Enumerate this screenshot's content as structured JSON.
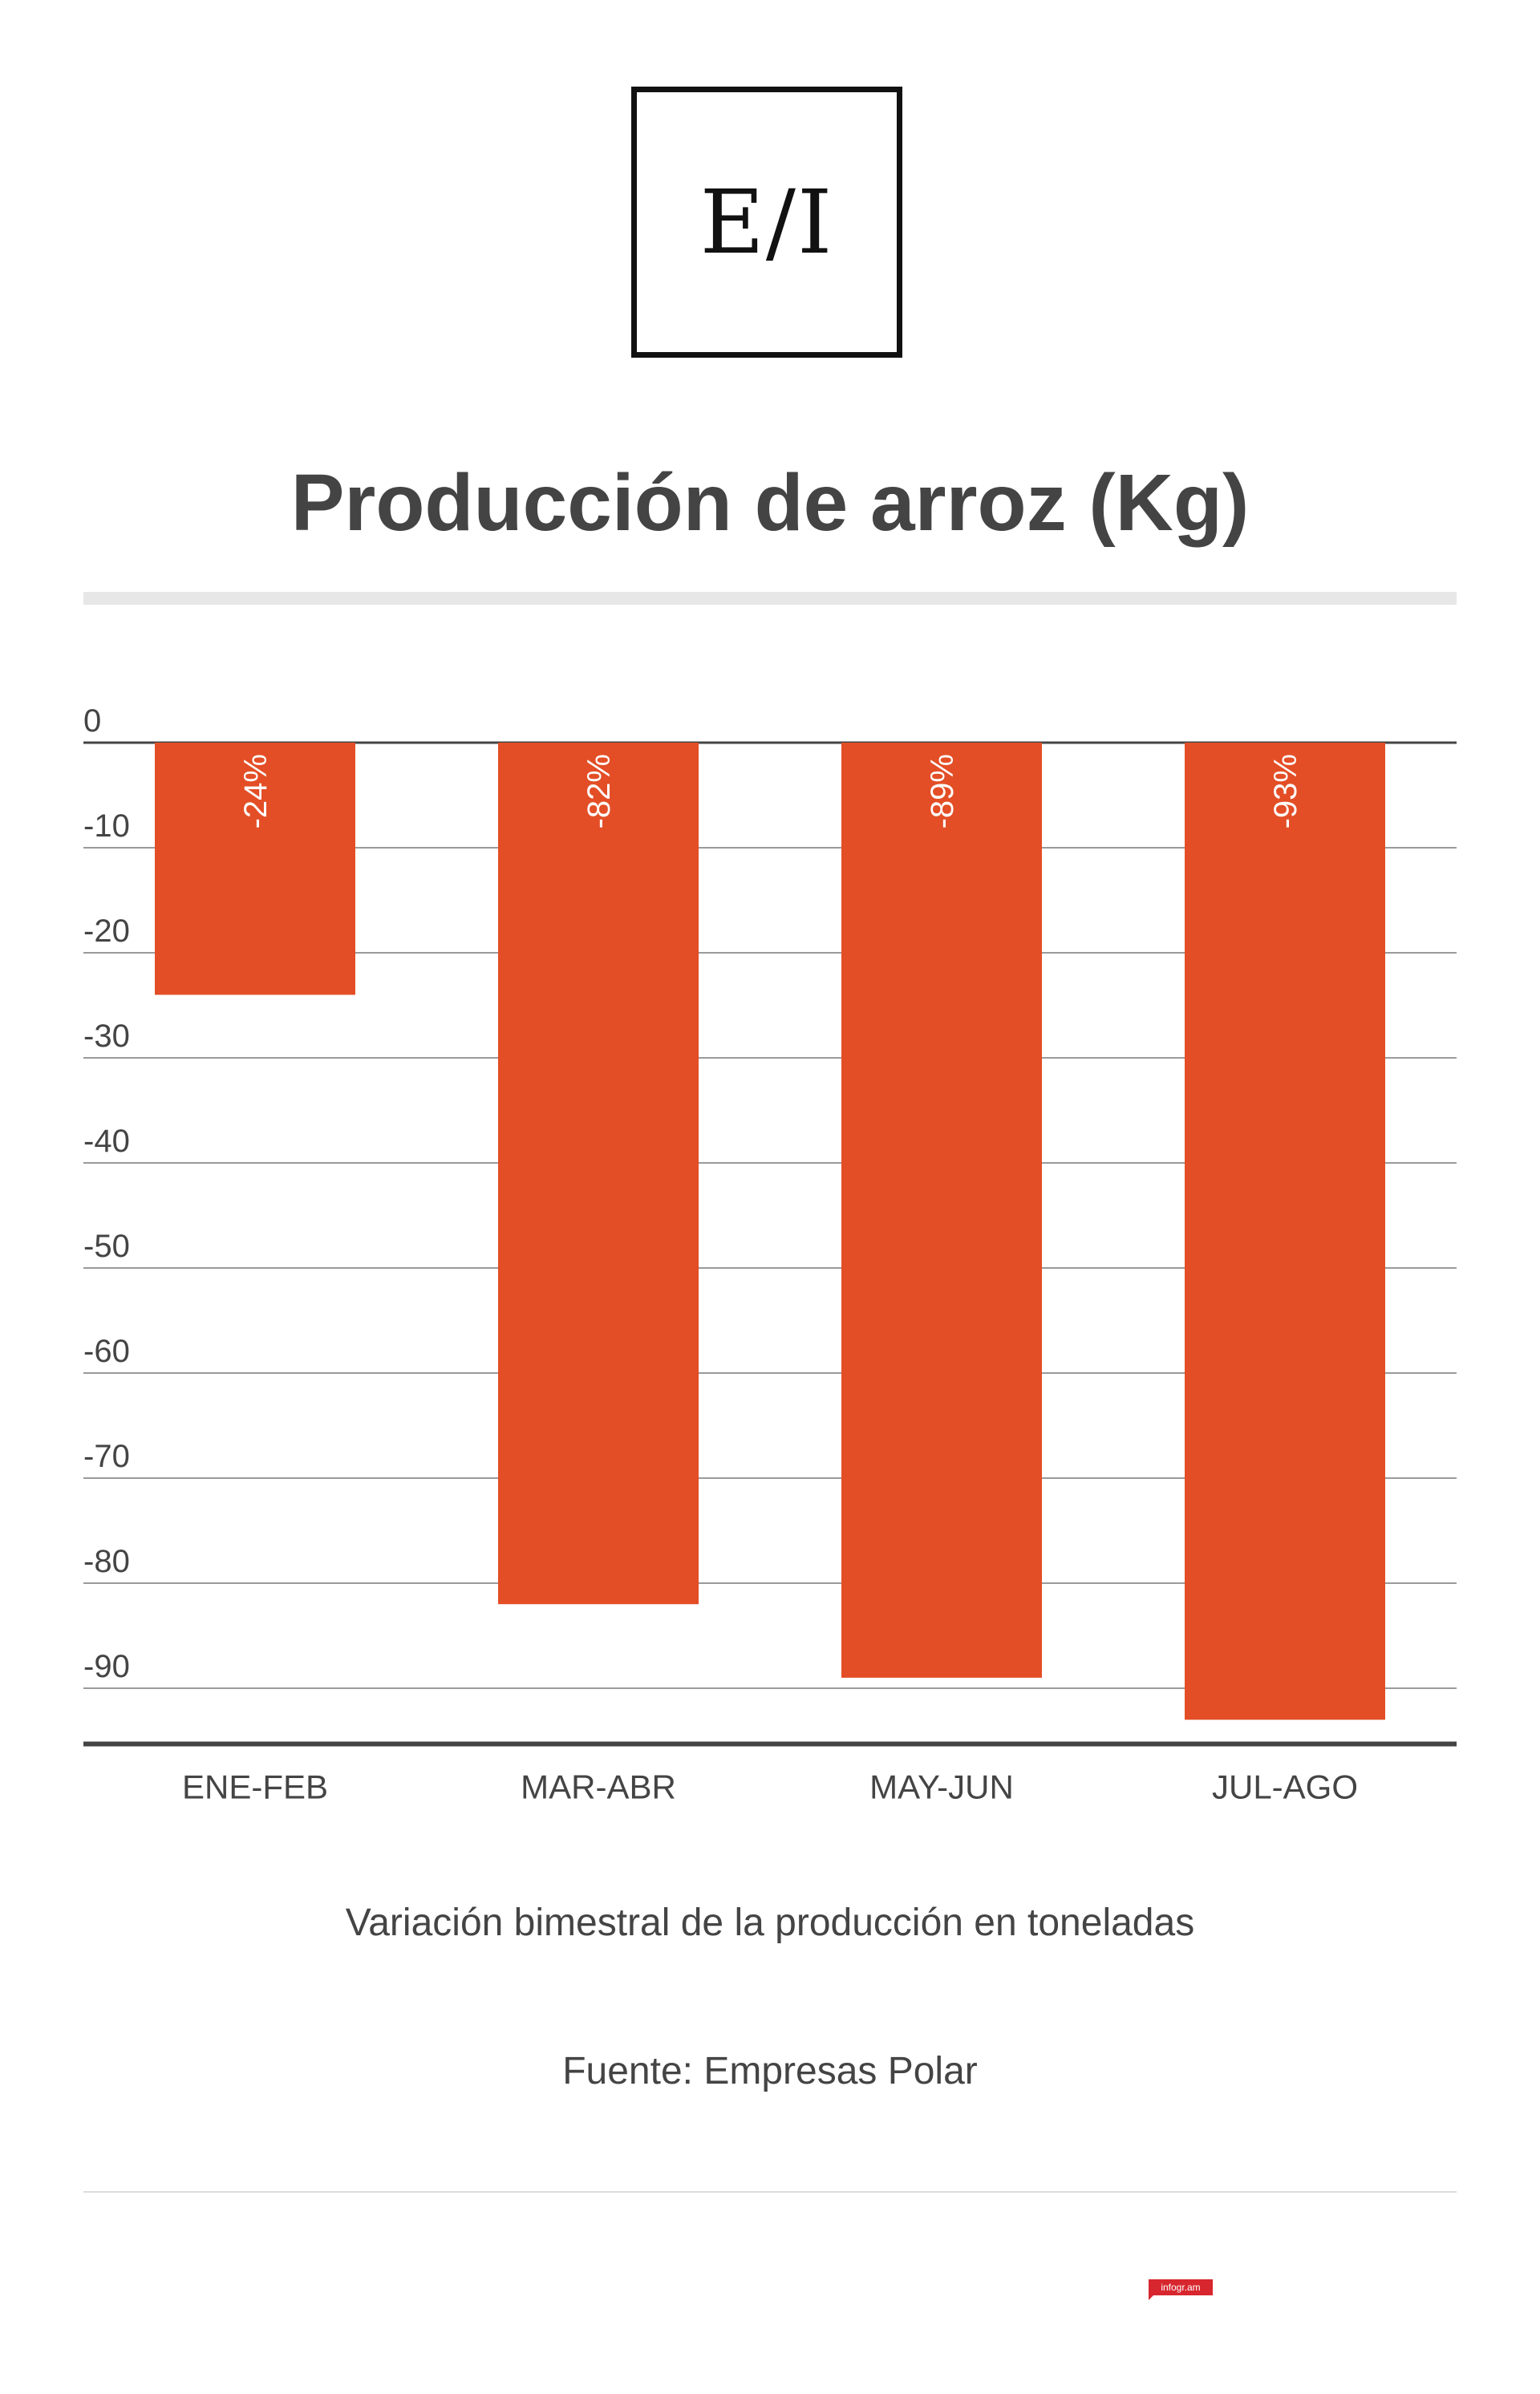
{
  "logo": {
    "text": "E/I"
  },
  "chart_data": {
    "type": "bar",
    "title": "Producción de arroz (Kg)",
    "categories": [
      "ENE-FEB",
      "MAR-ABR",
      "MAY-JUN",
      "JUL-AGO"
    ],
    "values": [
      -24,
      -82,
      -89,
      -93
    ],
    "data_labels": [
      "-24%",
      "-82%",
      "-89%",
      "-93%"
    ],
    "yticks": [
      0,
      -10,
      -20,
      -30,
      -40,
      -50,
      -60,
      -70,
      -80,
      -90
    ],
    "ylim": [
      -95,
      0
    ],
    "grid": true,
    "bar_color": "#e34e26",
    "xlabel": "",
    "ylabel": ""
  },
  "subtitle": "Variación bimestral de la producción en toneladas",
  "source": "Fuente: Empresas Polar",
  "badge": {
    "text": "infogr.am",
    "color": "#d7262e"
  }
}
